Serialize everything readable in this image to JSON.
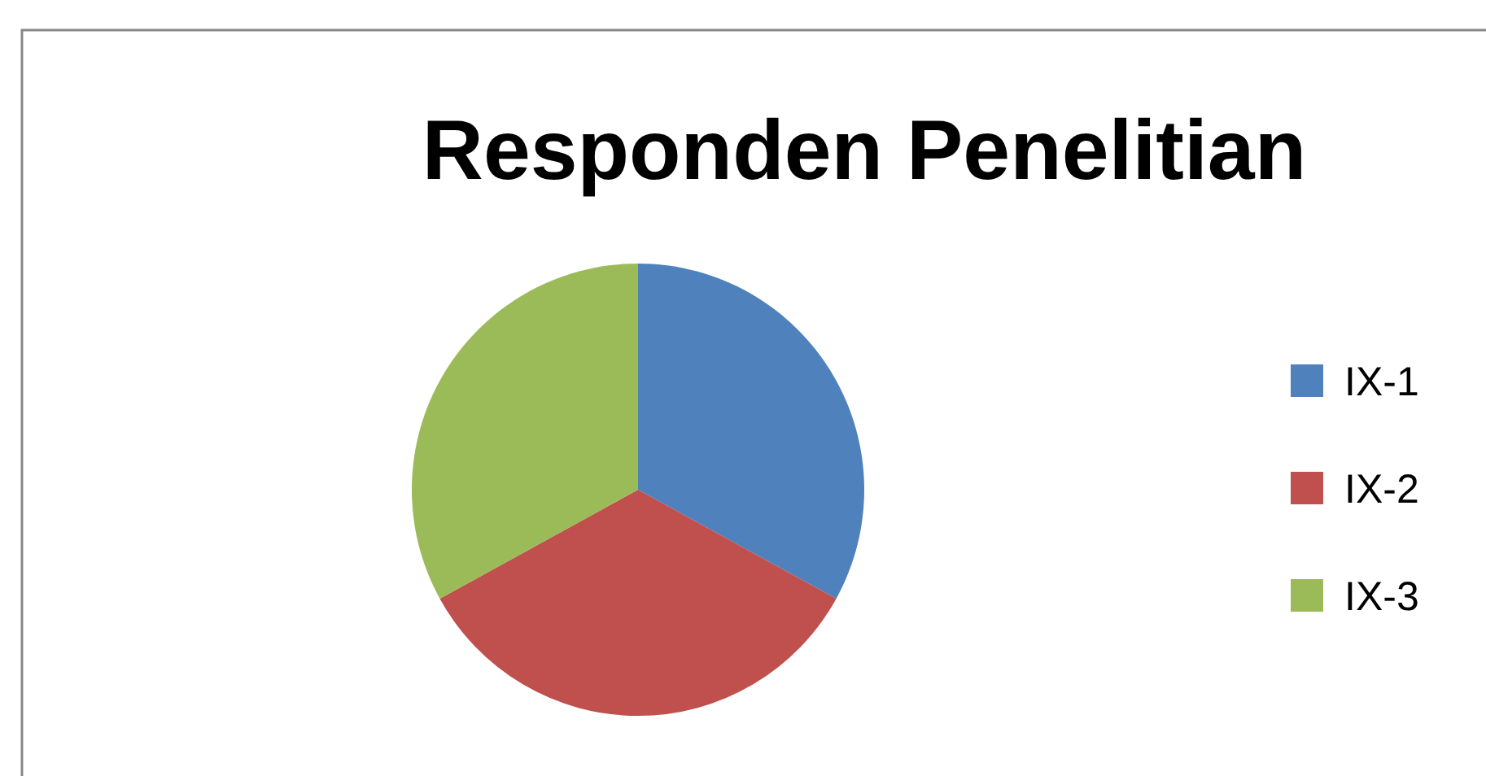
{
  "chart_data": {
    "type": "pie",
    "title": "Responden Penelitian",
    "categories": [
      "IX-1",
      "IX-2",
      "IX-3"
    ],
    "values": [
      33,
      34,
      33
    ],
    "colors": [
      "#4f81bd",
      "#c0504d",
      "#9bbb59"
    ],
    "legend": "right"
  }
}
